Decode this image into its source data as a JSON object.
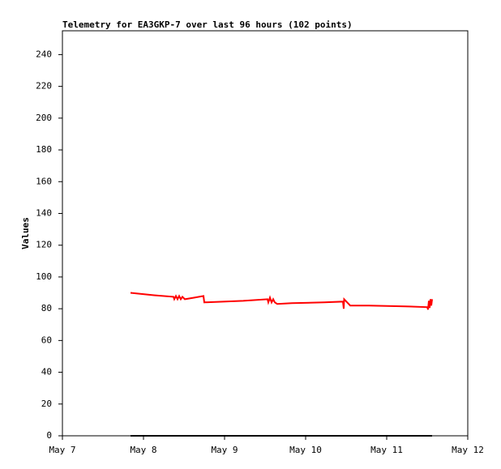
{
  "chart_data": {
    "type": "line",
    "title": "Telemetry for EA3GKP-7 over last 96 hours (102 points)",
    "y_label": "Values",
    "xlim": [
      0,
      5
    ],
    "xticks": [
      {
        "value": 0,
        "label": "May 7"
      },
      {
        "value": 1,
        "label": "May 8"
      },
      {
        "value": 2,
        "label": "May 9"
      },
      {
        "value": 3,
        "label": "May 10"
      },
      {
        "value": 4,
        "label": "May 11"
      },
      {
        "value": 5,
        "label": "May 12"
      }
    ],
    "ylim": [
      0,
      255
    ],
    "yticks": [
      0,
      20,
      40,
      60,
      80,
      100,
      120,
      140,
      160,
      180,
      200,
      220,
      240
    ],
    "series": [
      {
        "color": "#ff0000",
        "x": [
          0.84,
          1.13,
          1.37,
          1.38,
          1.4,
          1.42,
          1.44,
          1.46,
          1.48,
          1.51,
          1.63,
          1.74,
          1.75,
          2.23,
          2.53,
          2.54,
          2.56,
          2.58,
          2.6,
          2.62,
          2.65,
          2.83,
          3.23,
          3.46,
          3.47,
          3.475,
          3.55,
          3.78,
          4.23,
          4.5,
          4.51,
          4.52,
          4.53,
          4.54,
          4.55,
          4.56
        ],
        "values": [
          90,
          88.5,
          87.5,
          86,
          88,
          86,
          88,
          86,
          87.5,
          86,
          87,
          88,
          84,
          85,
          86,
          84,
          87,
          84,
          86,
          84,
          83,
          83.5,
          84,
          84.5,
          80,
          86,
          82,
          82,
          81.5,
          81,
          79.5,
          85,
          80.5,
          86,
          82,
          86
        ]
      },
      {
        "color": "#000000",
        "x": [
          0.84,
          4.56
        ],
        "values": [
          0,
          0
        ]
      }
    ]
  }
}
